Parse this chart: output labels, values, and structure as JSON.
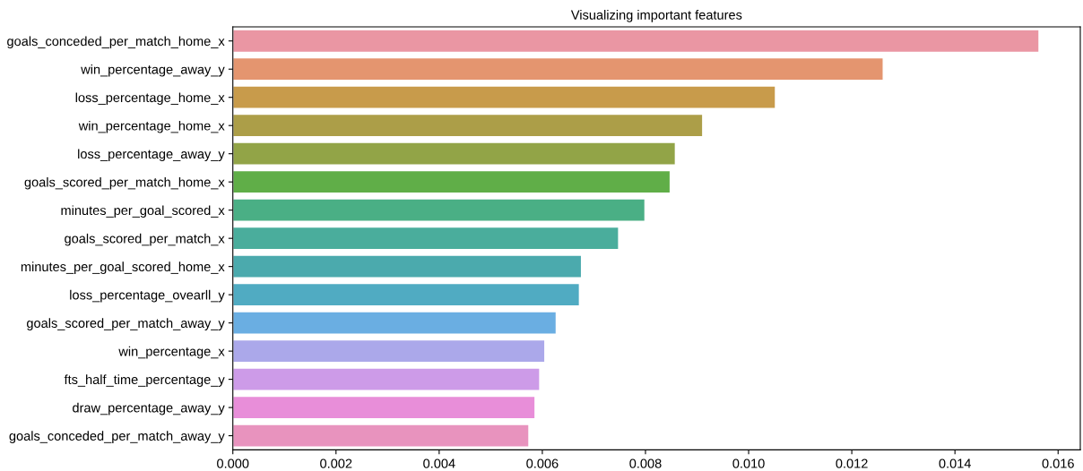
{
  "chart_data": {
    "type": "bar",
    "orientation": "horizontal",
    "title": "Visualizing important features",
    "categories": [
      "goals_conceded_per_match_home_x",
      "win_percentage_away_y",
      "loss_percentage_home_x",
      "win_percentage_home_x",
      "loss_percentage_away_y",
      "goals_scored_per_match_home_x",
      "minutes_per_goal_scored_x",
      "goals_scored_per_match_x",
      "minutes_per_goal_scored_home_x",
      "loss_percentage_ovearll_y",
      "goals_scored_per_match_away_y",
      "win_percentage_x",
      "fts_half_time_percentage_y",
      "draw_percentage_away_y",
      "goals_conceded_per_match_away_y"
    ],
    "values": [
      0.01563,
      0.01261,
      0.01052,
      0.00911,
      0.00858,
      0.00848,
      0.00799,
      0.00748,
      0.00676,
      0.00672,
      0.00627,
      0.00605,
      0.00595,
      0.00586,
      0.00574
    ],
    "colors": [
      "#ea96a3",
      "#e4956f",
      "#c89b4b",
      "#ac9e48",
      "#92a447",
      "#60ae48",
      "#4aaf85",
      "#4aad9c",
      "#4baaad",
      "#50abc2",
      "#6aaee2",
      "#aba8ea",
      "#cd9be8",
      "#e88ed9",
      "#e893be"
    ],
    "xlim": [
      0,
      0.01643
    ],
    "xticks": [
      {
        "value": 0,
        "label": "0.000"
      },
      {
        "value": 0.002,
        "label": "0.002"
      },
      {
        "value": 0.004,
        "label": "0.004"
      },
      {
        "value": 0.006,
        "label": "0.006"
      },
      {
        "value": 0.008,
        "label": "0.008"
      },
      {
        "value": 0.01,
        "label": "0.010"
      },
      {
        "value": 0.012,
        "label": "0.012"
      },
      {
        "value": 0.014,
        "label": "0.014"
      },
      {
        "value": 0.016,
        "label": "0.016"
      }
    ],
    "grid": false,
    "legend": false
  }
}
